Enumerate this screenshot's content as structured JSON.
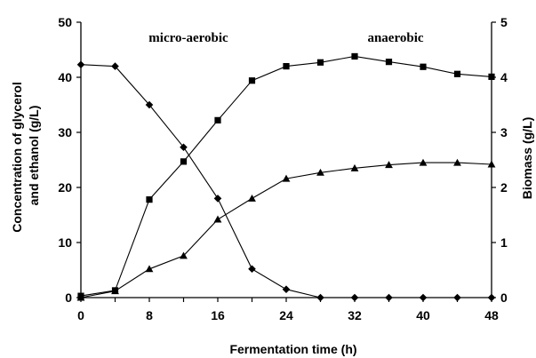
{
  "chart_data": {
    "type": "line",
    "xlabel": "Fermentation time (h)",
    "ylabel_lines": [
      "Concentration of glycerol",
      "and ethanol (g/L)"
    ],
    "y2label": "Biomass (g/L)",
    "xlim": [
      0,
      48
    ],
    "ylim": [
      0,
      50
    ],
    "y2lim": [
      0,
      5
    ],
    "xticks": [
      "0",
      "4",
      "8",
      "12",
      "16",
      "20",
      "24",
      "28",
      "32",
      "36",
      "40",
      "44",
      "48"
    ],
    "xtick_labels": [
      "0",
      "8",
      "16",
      "24",
      "32",
      "40",
      "48"
    ],
    "yticks": [
      "0",
      "10",
      "20",
      "30",
      "40",
      "50"
    ],
    "y2ticks": [
      "0",
      "1",
      "2",
      "3",
      "4",
      "5"
    ],
    "grid": false,
    "annotations": [
      {
        "text": "micro-aerobic",
        "x": 12,
        "y": 47
      },
      {
        "text": "anaerobic",
        "x": 36,
        "y": 47
      }
    ],
    "x": [
      0,
      4,
      8,
      12,
      16,
      20,
      24,
      28,
      32,
      36,
      40,
      44,
      48
    ],
    "series": [
      {
        "marker": "diamond",
        "axis": "left",
        "values": [
          42.3,
          42.0,
          35.0,
          27.3,
          18.0,
          5.2,
          1.5,
          0,
          0,
          0,
          0,
          0,
          0
        ]
      },
      {
        "marker": "square",
        "axis": "left",
        "values": [
          0.3,
          1.3,
          17.8,
          24.7,
          32.2,
          39.4,
          42.0,
          42.7,
          43.8,
          42.8,
          41.9,
          40.6,
          40.1
        ]
      },
      {
        "marker": "triangle",
        "axis": "right",
        "values": [
          0,
          0.12,
          0.52,
          0.76,
          1.42,
          1.8,
          2.16,
          2.27,
          2.35,
          2.41,
          2.45,
          2.45,
          2.42
        ]
      }
    ]
  }
}
